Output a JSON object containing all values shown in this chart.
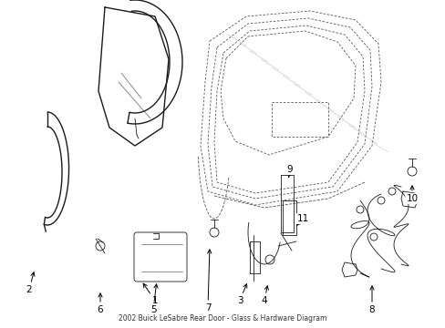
{
  "title": "2002 Buick LeSabre Rear Door - Glass & Hardware Diagram",
  "bg_color": "#ffffff",
  "line_color": "#1a1a1a",
  "fig_width": 4.89,
  "fig_height": 3.6,
  "dpi": 100,
  "label_font": 7.5,
  "label_color": "#000000"
}
